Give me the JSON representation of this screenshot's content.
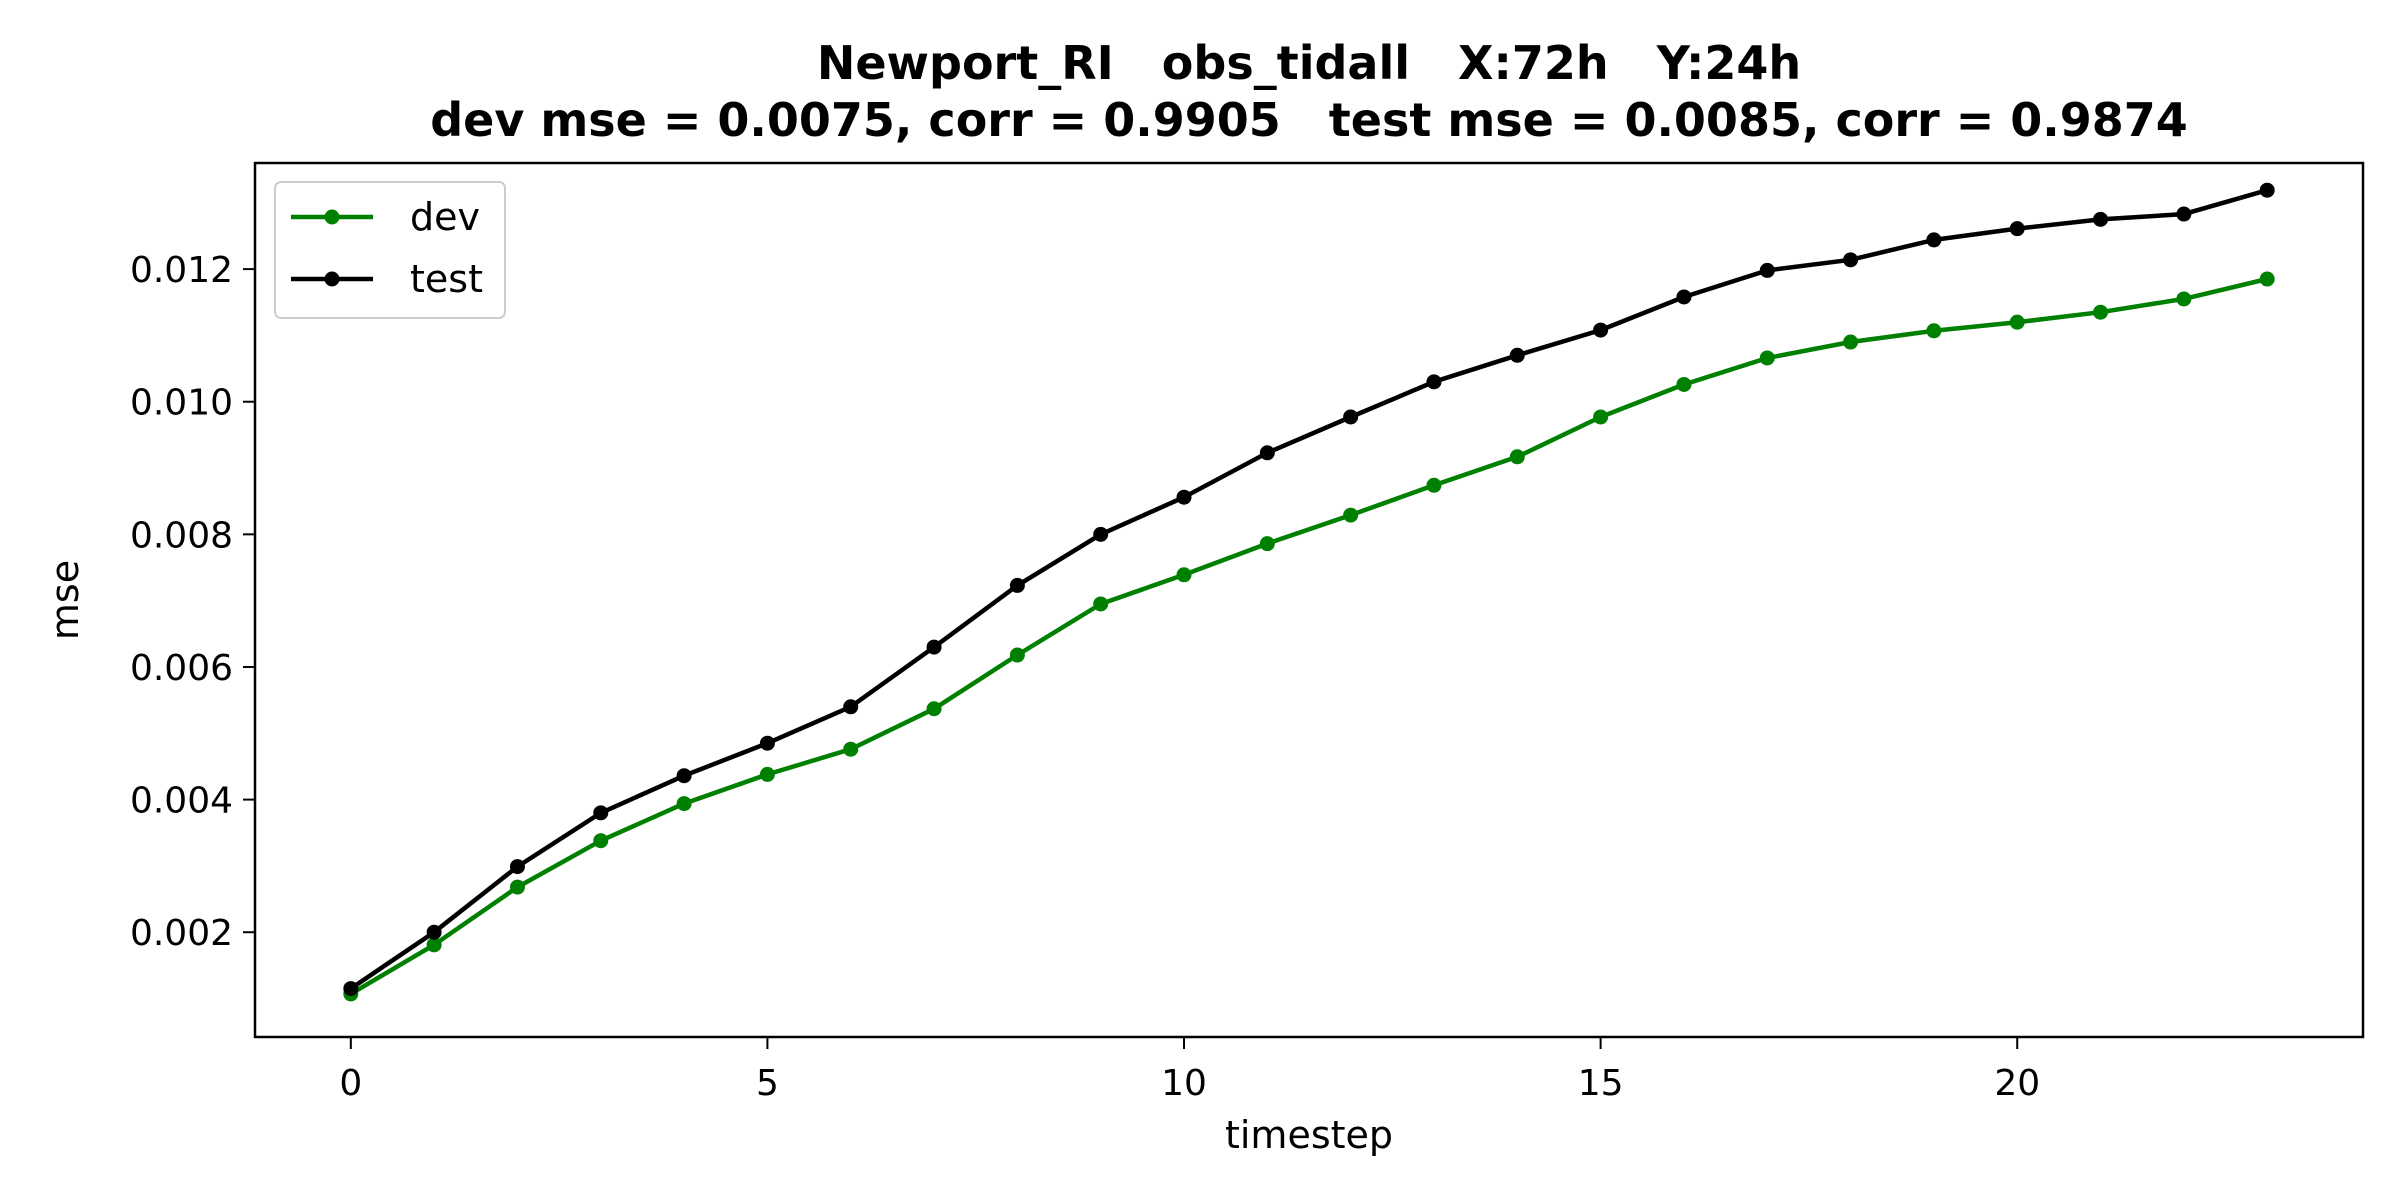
{
  "chart_data": {
    "type": "line",
    "title": "Newport_RI   obs_tidall   X:72h   Y:24h",
    "subtitle": "dev mse = 0.0075, corr = 0.9905   test mse = 0.0085, corr = 0.9874",
    "xlabel": "timestep",
    "ylabel": "mse",
    "xlim": [
      -1.15,
      24.15
    ],
    "ylim": [
      0.00042,
      0.0136
    ],
    "xticks": [
      0,
      5,
      10,
      15,
      20
    ],
    "xtick_labels": [
      "0",
      "5",
      "10",
      "15",
      "20"
    ],
    "yticks": [
      0.002,
      0.004,
      0.006,
      0.008,
      0.01,
      0.012
    ],
    "ytick_labels": [
      "0.002",
      "0.004",
      "0.006",
      "0.008",
      "0.010",
      "0.012"
    ],
    "grid": false,
    "legend_position": "top-left",
    "x": [
      0,
      1,
      2,
      3,
      4,
      5,
      6,
      7,
      8,
      9,
      10,
      11,
      12,
      13,
      14,
      15,
      16,
      17,
      18,
      19,
      20,
      21,
      22,
      23
    ],
    "series": [
      {
        "name": "dev",
        "color": "#008000",
        "values": [
          0.00107,
          0.00181,
          0.00268,
          0.00338,
          0.00394,
          0.00438,
          0.00476,
          0.00537,
          0.00618,
          0.00695,
          0.00739,
          0.00786,
          0.00829,
          0.00874,
          0.00917,
          0.00977,
          0.01026,
          0.01066,
          0.0109,
          0.01107,
          0.0112,
          0.01135,
          0.01155,
          0.01185
        ]
      },
      {
        "name": "test",
        "color": "#000000",
        "values": [
          0.00115,
          0.002,
          0.00299,
          0.0038,
          0.00436,
          0.00485,
          0.0054,
          0.0063,
          0.00723,
          0.008,
          0.00856,
          0.00923,
          0.00977,
          0.0103,
          0.0107,
          0.01108,
          0.01158,
          0.01198,
          0.01214,
          0.01244,
          0.01261,
          0.01275,
          0.01283,
          0.01319
        ]
      }
    ]
  }
}
